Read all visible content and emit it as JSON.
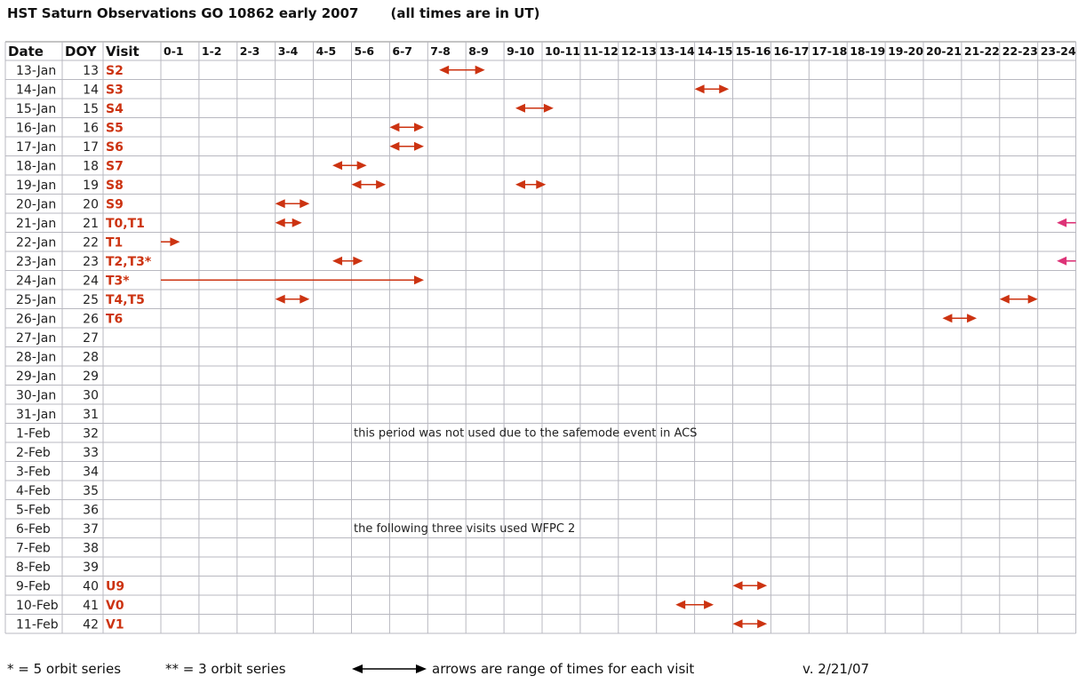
{
  "title": {
    "main": "HST Saturn Observations GO 10862 early 2007",
    "note": "(all times are in UT)"
  },
  "headers": {
    "date": "Date",
    "doy": "DOY",
    "visit": "Visit",
    "hours": [
      "0-1",
      "1-2",
      "2-3",
      "3-4",
      "4-5",
      "5-6",
      "6-7",
      "7-8",
      "8-9",
      "9-10",
      "10-11",
      "11-12",
      "12-13",
      "13-14",
      "14-15",
      "15-16",
      "16-17",
      "17-18",
      "18-19",
      "19-20",
      "20-21",
      "21-22",
      "22-23",
      "23-24"
    ]
  },
  "rows": [
    {
      "date": "13-Jan",
      "doy": "13",
      "visit": "S2"
    },
    {
      "date": "14-Jan",
      "doy": "14",
      "visit": "S3"
    },
    {
      "date": "15-Jan",
      "doy": "15",
      "visit": "S4"
    },
    {
      "date": "16-Jan",
      "doy": "16",
      "visit": "S5"
    },
    {
      "date": "17-Jan",
      "doy": "17",
      "visit": "S6"
    },
    {
      "date": "18-Jan",
      "doy": "18",
      "visit": "S7"
    },
    {
      "date": "19-Jan",
      "doy": "19",
      "visit": "S8"
    },
    {
      "date": "20-Jan",
      "doy": "20",
      "visit": "S9"
    },
    {
      "date": "21-Jan",
      "doy": "21",
      "visit": "T0,T1"
    },
    {
      "date": "22-Jan",
      "doy": "22",
      "visit": "T1"
    },
    {
      "date": "23-Jan",
      "doy": "23",
      "visit": "T2,T3*"
    },
    {
      "date": "24-Jan",
      "doy": "24",
      "visit": "T3*"
    },
    {
      "date": "25-Jan",
      "doy": "25",
      "visit": "T4,T5"
    },
    {
      "date": "26-Jan",
      "doy": "26",
      "visit": "T6"
    },
    {
      "date": "27-Jan",
      "doy": "27",
      "visit": ""
    },
    {
      "date": "28-Jan",
      "doy": "28",
      "visit": ""
    },
    {
      "date": "29-Jan",
      "doy": "29",
      "visit": ""
    },
    {
      "date": "30-Jan",
      "doy": "30",
      "visit": ""
    },
    {
      "date": "31-Jan",
      "doy": "31",
      "visit": ""
    },
    {
      "date": "1-Feb",
      "doy": "32",
      "visit": ""
    },
    {
      "date": "2-Feb",
      "doy": "33",
      "visit": ""
    },
    {
      "date": "3-Feb",
      "doy": "34",
      "visit": ""
    },
    {
      "date": "4-Feb",
      "doy": "35",
      "visit": ""
    },
    {
      "date": "5-Feb",
      "doy": "36",
      "visit": ""
    },
    {
      "date": "6-Feb",
      "doy": "37",
      "visit": ""
    },
    {
      "date": "7-Feb",
      "doy": "38",
      "visit": ""
    },
    {
      "date": "8-Feb",
      "doy": "39",
      "visit": ""
    },
    {
      "date": "9-Feb",
      "doy": "40",
      "visit": "U9"
    },
    {
      "date": "10-Feb",
      "doy": "41",
      "visit": "V0"
    },
    {
      "date": "11-Feb",
      "doy": "42",
      "visit": "V1"
    }
  ],
  "time_ranges": [
    {
      "row": 0,
      "start": 7.3,
      "end": 8.5,
      "style": "double"
    },
    {
      "row": 1,
      "start": 14.0,
      "end": 14.9,
      "style": "double"
    },
    {
      "row": 2,
      "start": 9.3,
      "end": 10.3,
      "style": "double"
    },
    {
      "row": 3,
      "start": 6.0,
      "end": 6.9,
      "style": "double"
    },
    {
      "row": 4,
      "start": 6.0,
      "end": 6.9,
      "style": "double"
    },
    {
      "row": 5,
      "start": 4.5,
      "end": 5.4,
      "style": "double"
    },
    {
      "row": 6,
      "start": 5.0,
      "end": 5.9,
      "style": "double"
    },
    {
      "row": 6,
      "start": 9.3,
      "end": 10.1,
      "style": "double"
    },
    {
      "row": 7,
      "start": 3.0,
      "end": 3.9,
      "style": "double"
    },
    {
      "row": 8,
      "start": 3.0,
      "end": 3.7,
      "style": "double"
    },
    {
      "row": 8,
      "start": 23.5,
      "end": 24.0,
      "style": "left-only"
    },
    {
      "row": 9,
      "start": 0.0,
      "end": 0.5,
      "style": "right-only"
    },
    {
      "row": 10,
      "start": 4.5,
      "end": 5.3,
      "style": "double"
    },
    {
      "row": 10,
      "start": 23.5,
      "end": 24.0,
      "style": "left-only"
    },
    {
      "row": 11,
      "start": 0.0,
      "end": 6.9,
      "style": "right-only"
    },
    {
      "row": 12,
      "start": 3.0,
      "end": 3.9,
      "style": "double"
    },
    {
      "row": 12,
      "start": 22.0,
      "end": 23.0,
      "style": "double"
    },
    {
      "row": 13,
      "start": 20.5,
      "end": 21.4,
      "style": "double"
    },
    {
      "row": 27,
      "start": 15.0,
      "end": 15.9,
      "style": "double"
    },
    {
      "row": 28,
      "start": 13.5,
      "end": 14.5,
      "style": "double"
    },
    {
      "row": 29,
      "start": 15.0,
      "end": 15.9,
      "style": "double"
    }
  ],
  "annotations": [
    {
      "row": 19,
      "text": "this period was not used due to the safemode event in ACS"
    },
    {
      "row": 24,
      "text": "the following three visits used WFPC 2"
    }
  ],
  "legend": {
    "orbit5": "* = 5 orbit series",
    "orbit3": "** = 3 orbit series",
    "arrows": "arrows are range of times for each visit",
    "version": "v. 2/21/07"
  },
  "colors": {
    "visit_text": "#cc3311",
    "arrow": "#cc3311",
    "arrow_magenta": "#dd3377",
    "grid": "#b8b8c0",
    "legend_arrow": "#000000"
  }
}
